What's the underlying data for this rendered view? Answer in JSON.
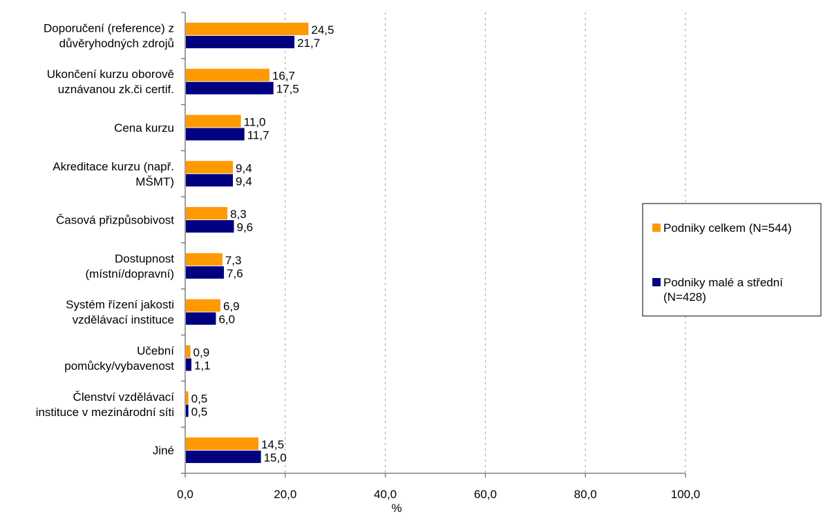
{
  "chart_data": {
    "type": "bar",
    "orientation": "horizontal",
    "categories": [
      [
        "Doporučení (reference) z",
        "důvěryhodných zdrojů"
      ],
      [
        "Ukončení kurzu oborově",
        "uznávanou zk.či certif."
      ],
      [
        "Cena kurzu"
      ],
      [
        "Akreditace kurzu (např.",
        "MŠMT)"
      ],
      [
        "Časová přizpůsobivost"
      ],
      [
        "Dostupnost",
        "(místní/dopravní)"
      ],
      [
        "Systém řízení jakosti",
        "vzdělávací instituce"
      ],
      [
        "Učební",
        "pomůcky/vybavenost"
      ],
      [
        "Členství vzdělávací",
        "instituce v mezinárodní síti"
      ],
      [
        "Jiné"
      ]
    ],
    "series": [
      {
        "name": "Podniky celkem (N=544)",
        "color": "#FF9900",
        "values": [
          24.5,
          16.7,
          11.0,
          9.4,
          8.3,
          7.3,
          6.9,
          0.9,
          0.5,
          14.5
        ],
        "labels": [
          "24,5",
          "16,7",
          "11,0",
          "9,4",
          "8,3",
          "7,3",
          "6,9",
          "0,9",
          "0,5",
          "14,5"
        ]
      },
      {
        "name": "Podniky malé a střední (N=428)",
        "legend_lines": [
          "Podniky malé a střední",
          "(N=428)"
        ],
        "color": "#000080",
        "values": [
          21.7,
          17.5,
          11.7,
          9.4,
          9.6,
          7.6,
          6.0,
          1.1,
          0.5,
          15.0
        ],
        "labels": [
          "21,7",
          "17,5",
          "11,7",
          "9,4",
          "9,6",
          "7,6",
          "6,0",
          "1,1",
          "0,5",
          "15,0"
        ]
      }
    ],
    "xlabel": "%",
    "xlim": [
      0,
      100
    ],
    "xticks": [
      0,
      20,
      40,
      60,
      80,
      100
    ],
    "xtick_labels": [
      "0,0",
      "20,0",
      "40,0",
      "60,0",
      "80,0",
      "100,0"
    ],
    "grid": "vertical-dashed",
    "legend_position": "right"
  }
}
